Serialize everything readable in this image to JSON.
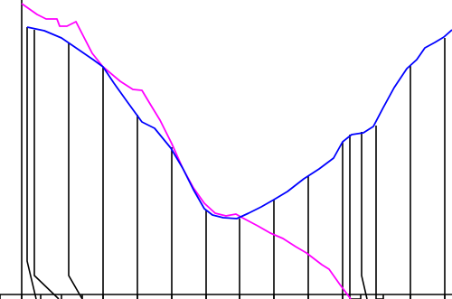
{
  "chart_data": {
    "type": "line",
    "title": "",
    "xlabel": "",
    "ylabel": "",
    "grid": false,
    "legend": "none",
    "xlim": [
      0,
      500
    ],
    "ylim": [
      0,
      331
    ],
    "series": [
      {
        "color": "#ff00ff",
        "points": [
          [
            24,
            327
          ],
          [
            41,
            315
          ],
          [
            51,
            310
          ],
          [
            63,
            310
          ],
          [
            66,
            302
          ],
          [
            74,
            302
          ],
          [
            84,
            307
          ],
          [
            102,
            272
          ],
          [
            114,
            257
          ],
          [
            133,
            241
          ],
          [
            147,
            232
          ],
          [
            157,
            231
          ],
          [
            166,
            216
          ],
          [
            177,
            198
          ],
          [
            190,
            172
          ],
          [
            202,
            145
          ],
          [
            214,
            123
          ],
          [
            226,
            106
          ],
          [
            238,
            95
          ],
          [
            250,
            92
          ],
          [
            261,
            94
          ],
          [
            268,
            90
          ],
          [
            285,
            81
          ],
          [
            299,
            73
          ],
          [
            313,
            67
          ],
          [
            327,
            58
          ],
          [
            339,
            51
          ],
          [
            356,
            38
          ],
          [
            364,
            33
          ],
          [
            376,
            16
          ],
          [
            388,
            0
          ]
        ]
      },
      {
        "color": "#0000ff",
        "points": [
          [
            30,
            301
          ],
          [
            49,
            297
          ],
          [
            68,
            289
          ],
          [
            87,
            276
          ],
          [
            103,
            265
          ],
          [
            114,
            257
          ],
          [
            126,
            239
          ],
          [
            141,
            218
          ],
          [
            157,
            196
          ],
          [
            171,
            189
          ],
          [
            189,
            167
          ],
          [
            202,
            145
          ],
          [
            214,
            121
          ],
          [
            226,
            100
          ],
          [
            235,
            93
          ],
          [
            247,
            90
          ],
          [
            262,
            89
          ],
          [
            275,
            95
          ],
          [
            289,
            102
          ],
          [
            303,
            110
          ],
          [
            318,
            119
          ],
          [
            336,
            133
          ],
          [
            353,
            144
          ],
          [
            369,
            156
          ],
          [
            379,
            174
          ],
          [
            389,
            182
          ],
          [
            402,
            184
          ],
          [
            413,
            191
          ],
          [
            424,
            212
          ],
          [
            436,
            234
          ],
          [
            450,
            255
          ],
          [
            461,
            265
          ],
          [
            470,
            278
          ],
          [
            481,
            284
          ],
          [
            491,
            290
          ],
          [
            500,
            298
          ]
        ]
      }
    ],
    "links": [
      [
        24,
        331,
        24,
        327
      ],
      [
        30,
        301,
        40,
        42
      ],
      [
        38,
        298,
        65,
        26
      ],
      [
        76,
        283,
        91,
        26
      ],
      [
        114,
        257,
        114,
        0
      ],
      [
        152,
        204,
        152,
        0
      ],
      [
        190,
        168,
        190,
        0
      ],
      [
        228,
        98,
        228,
        0
      ],
      [
        265,
        89,
        265,
        0
      ],
      [
        303,
        110,
        303,
        0
      ],
      [
        341,
        136,
        341,
        0
      ],
      [
        379,
        174,
        379,
        0
      ],
      [
        387,
        182,
        399,
        0
      ],
      [
        400,
        185,
        406,
        26
      ],
      [
        416,
        192,
        424,
        0
      ],
      [
        454,
        258,
        454,
        0
      ],
      [
        492,
        289,
        492,
        0
      ]
    ],
    "ticks": [
      0,
      24,
      45,
      68,
      91,
      114,
      152,
      190,
      228,
      265,
      303,
      341,
      379,
      399,
      424,
      454,
      492
    ]
  }
}
